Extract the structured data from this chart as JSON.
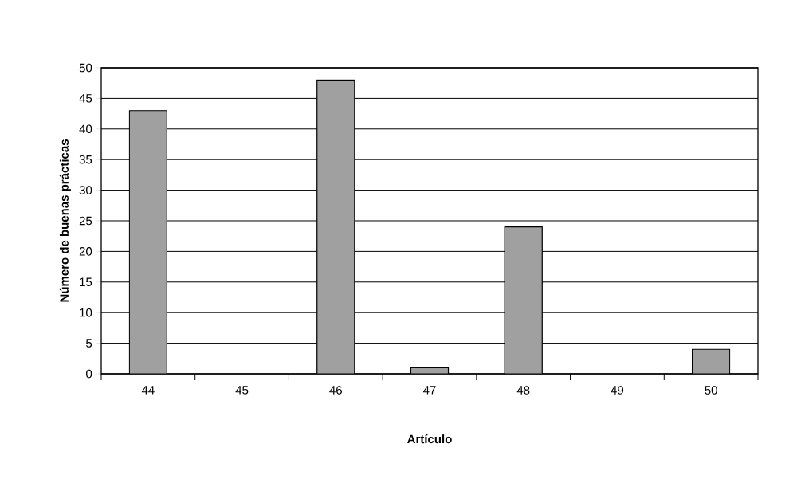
{
  "chart_data": {
    "type": "bar",
    "xlabel": "Artículo",
    "ylabel": "Número de buenas prácticas",
    "categories": [
      "44",
      "45",
      "46",
      "47",
      "48",
      "49",
      "50"
    ],
    "values": [
      43,
      0,
      48,
      1,
      24,
      0,
      4
    ],
    "color": "#a0a0a0",
    "ylim": [
      0,
      50
    ],
    "yticks": [
      0,
      5,
      10,
      15,
      20,
      25,
      30,
      35,
      40,
      45,
      50
    ],
    "grid": "y"
  }
}
